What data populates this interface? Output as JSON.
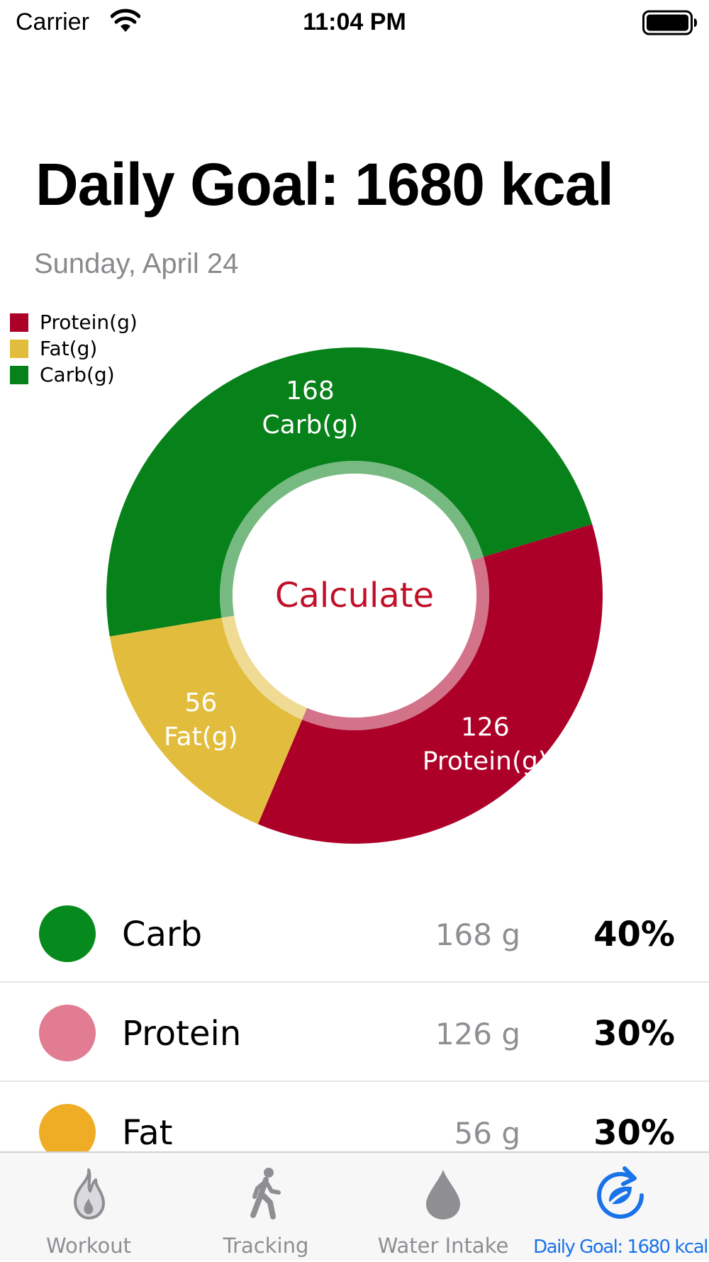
{
  "status_bar": {
    "carrier": "Carrier",
    "time": "11:04 PM"
  },
  "header": {
    "title": "Daily Goal: 1680 kcal",
    "date": "Sunday, April 24"
  },
  "chart_data": {
    "type": "pie",
    "donut": true,
    "center_label": "Calculate",
    "center_label_color": "#c0102a",
    "legend_position": "top-left",
    "legend": [
      {
        "label": "Protein(g)",
        "color": "#ad0029"
      },
      {
        "label": "Fat(g)",
        "color": "#e2bd3d"
      },
      {
        "label": "Carb(g)",
        "color": "#078119"
      }
    ],
    "slices": [
      {
        "name": "Carb(g)",
        "value": 168,
        "color": "#078119"
      },
      {
        "name": "Protein(g)",
        "value": 126,
        "color": "#ad0029"
      },
      {
        "name": "Fat(g)",
        "value": 56,
        "color": "#e2bd3d"
      }
    ]
  },
  "summary": [
    {
      "name": "Carb",
      "grams": "168 g",
      "percent": "40%",
      "color": "#078a1d"
    },
    {
      "name": "Protein",
      "grams": "126 g",
      "percent": "30%",
      "color": "#e17c92"
    },
    {
      "name": "Fat",
      "grams": "56 g",
      "percent": "30%",
      "color": "#efac25"
    }
  ],
  "tabs": [
    {
      "label": "Workout",
      "icon": "flame-icon",
      "active": false
    },
    {
      "label": "Tracking",
      "icon": "walking-figure-icon",
      "active": false
    },
    {
      "label": "Water Intake",
      "icon": "water-drop-icon",
      "active": false
    },
    {
      "label": "Daily Goal: 1680 kcal",
      "icon": "refresh-leaf-icon",
      "active": true
    }
  ],
  "colors": {
    "tab_active": "#1a73e8",
    "tab_inactive": "#8e8e93"
  }
}
